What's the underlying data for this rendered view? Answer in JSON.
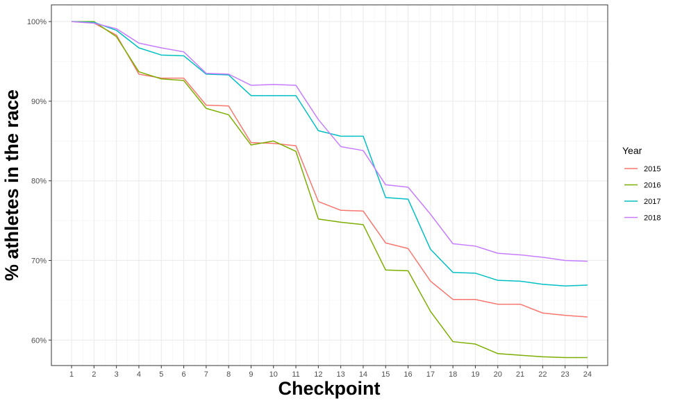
{
  "chart_data": {
    "type": "line",
    "xlabel": "Checkpoint",
    "ylabel": "% athletes in the race",
    "x": [
      1,
      2,
      3,
      4,
      5,
      6,
      7,
      8,
      9,
      10,
      11,
      12,
      13,
      14,
      15,
      16,
      17,
      18,
      19,
      20,
      21,
      22,
      23,
      24
    ],
    "x_tick_labels": [
      "1",
      "2",
      "3",
      "4",
      "5",
      "6",
      "7",
      "8",
      "9",
      "10",
      "11",
      "12",
      "13",
      "14",
      "15",
      "16",
      "17",
      "18",
      "19",
      "20",
      "21",
      "22",
      "23",
      "24"
    ],
    "ylim": [
      56.8,
      102.1
    ],
    "xlim": [
      0.1,
      24.9
    ],
    "y_ticks": [
      60,
      70,
      80,
      90,
      100
    ],
    "y_tick_labels": [
      "60%",
      "70%",
      "80%",
      "90%",
      "100%"
    ],
    "grid": true,
    "legend": {
      "title": "Year",
      "position": "right"
    },
    "series": [
      {
        "name": "2015",
        "color": "#F8766D",
        "values": [
          100,
          99.8,
          98.3,
          93.4,
          92.9,
          92.9,
          89.5,
          89.4,
          84.8,
          84.7,
          84.4,
          77.4,
          76.3,
          76.2,
          72.2,
          71.5,
          67.4,
          65.1,
          65.1,
          64.5,
          64.5,
          63.4,
          63.1,
          62.9
        ]
      },
      {
        "name": "2016",
        "color": "#7CAE00",
        "values": [
          100,
          100,
          98.1,
          93.7,
          92.8,
          92.6,
          89.1,
          88.3,
          84.5,
          85.0,
          83.7,
          75.2,
          74.8,
          74.5,
          68.8,
          68.7,
          63.6,
          59.8,
          59.5,
          58.3,
          58.1,
          57.9,
          57.8,
          57.8
        ]
      },
      {
        "name": "2017",
        "color": "#00BFC4",
        "values": [
          100,
          99.9,
          98.9,
          96.7,
          95.8,
          95.7,
          93.4,
          93.3,
          90.7,
          90.7,
          90.7,
          86.3,
          85.6,
          85.6,
          77.9,
          77.7,
          71.4,
          68.5,
          68.4,
          67.5,
          67.4,
          67.0,
          66.8,
          66.9
        ]
      },
      {
        "name": "2018",
        "color": "#C77CFF",
        "values": [
          100,
          99.8,
          99.1,
          97.3,
          96.7,
          96.2,
          93.5,
          93.4,
          92.0,
          92.1,
          92.0,
          87.7,
          84.3,
          83.8,
          79.5,
          79.2,
          75.8,
          72.1,
          71.8,
          70.9,
          70.7,
          70.4,
          70.0,
          69.9
        ]
      }
    ]
  }
}
